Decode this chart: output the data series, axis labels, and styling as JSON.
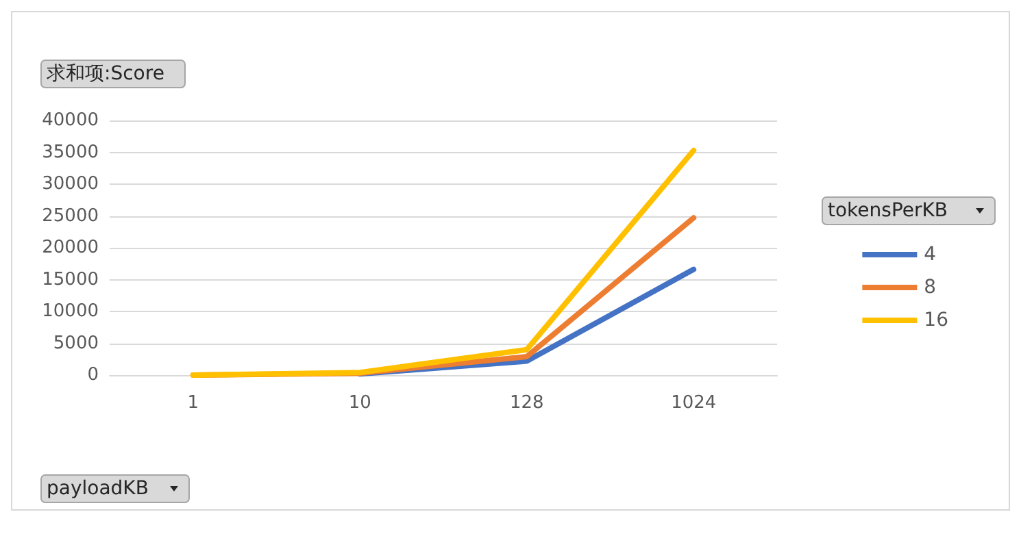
{
  "chart_data": {
    "type": "line",
    "title": "求和项:Score",
    "xlabel": "payloadKB",
    "legend_title": "tokensPerKB",
    "categories": [
      "1",
      "10",
      "128",
      "1024"
    ],
    "series": [
      {
        "name": "4",
        "color": "#4472c4",
        "values": [
          null,
          200,
          2200,
          16600
        ]
      },
      {
        "name": "8",
        "color": "#ed7d31",
        "values": [
          0,
          300,
          2900,
          24700
        ]
      },
      {
        "name": "16",
        "color": "#ffc000",
        "values": [
          0,
          400,
          4000,
          35300
        ]
      }
    ],
    "ylim": [
      0,
      40000
    ],
    "yticks": [
      0,
      5000,
      10000,
      15000,
      20000,
      25000,
      30000,
      35000,
      40000
    ],
    "grid": "y",
    "legend": "right",
    "marker": "none",
    "line_style": "solid"
  }
}
